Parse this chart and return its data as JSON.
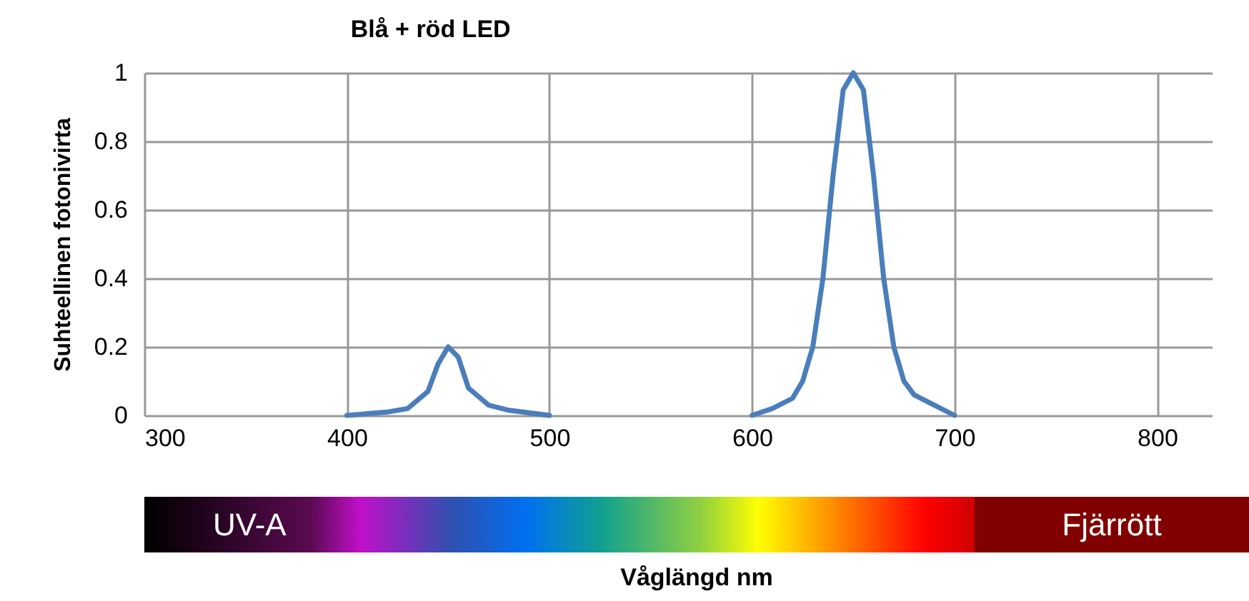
{
  "chart_data": {
    "type": "line",
    "title": "Blå + röd LED",
    "ylabel": "Suhteellinen  fotonivirta",
    "x": [
      400,
      410,
      420,
      430,
      440,
      445,
      450,
      455,
      460,
      470,
      480,
      500,
      550,
      600,
      610,
      620,
      625,
      630,
      635,
      640,
      645,
      650,
      655,
      660,
      665,
      670,
      675,
      680,
      690,
      700
    ],
    "series": [
      {
        "color": "#4a7ebb",
        "values": [
          0,
          0.005,
          0.01,
          0.02,
          0.07,
          0.15,
          0.2,
          0.17,
          0.08,
          0.03,
          0.015,
          0,
          null,
          0,
          0.02,
          0.05,
          0.1,
          0.2,
          0.4,
          0.7,
          0.95,
          1,
          0.95,
          0.7,
          0.4,
          0.2,
          0.1,
          0.06,
          0.03,
          0
        ]
      }
    ],
    "xlim": [
      300,
      827
    ],
    "xticks": [
      300,
      400,
      500,
      600,
      700,
      800
    ],
    "ylim": [
      0,
      1
    ],
    "yticks": [
      0,
      0.2,
      0.4,
      0.6,
      0.8,
      1
    ],
    "grid": true,
    "annotations": [
      "UV-A",
      "Fjärrött",
      "Våglängd nm"
    ]
  }
}
